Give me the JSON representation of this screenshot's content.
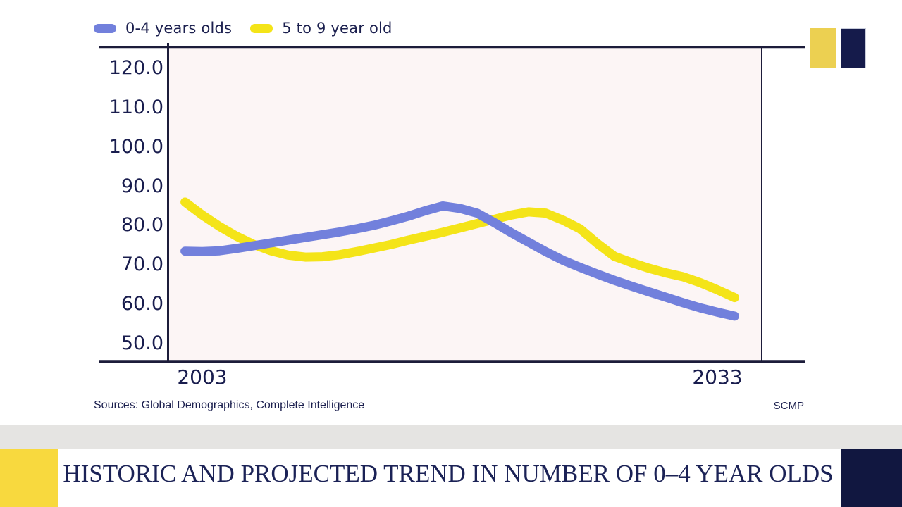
{
  "legend": {
    "items": [
      {
        "label": "0-4 years olds",
        "color": "#7280dc"
      },
      {
        "label": "5 to 9 year old",
        "color": "#f4e418"
      }
    ]
  },
  "chart_data": {
    "type": "line",
    "title": "",
    "xlabel": "",
    "ylabel": "",
    "x": [
      2002,
      2003,
      2004,
      2005,
      2006,
      2007,
      2008,
      2009,
      2010,
      2011,
      2012,
      2013,
      2014,
      2015,
      2016,
      2017,
      2018,
      2019,
      2020,
      2021,
      2022,
      2023,
      2024,
      2025,
      2026,
      2027,
      2028,
      2029,
      2030,
      2031,
      2032,
      2033,
      2034
    ],
    "series": [
      {
        "name": "0-4 years olds",
        "color": "#7280dc",
        "values": [
          73.5,
          73.4,
          73.6,
          74.2,
          74.9,
          75.6,
          76.3,
          77.0,
          77.7,
          78.4,
          79.2,
          80.1,
          81.2,
          82.4,
          83.8,
          85.0,
          84.4,
          83.2,
          80.8,
          78.2,
          75.8,
          73.4,
          71.2,
          69.4,
          67.7,
          66.1,
          64.6,
          63.2,
          61.8,
          60.4,
          59.1,
          58.0,
          57.0
        ]
      },
      {
        "name": "5 to 9 year old",
        "color": "#f4e418",
        "values": [
          86.0,
          82.7,
          79.8,
          77.3,
          75.2,
          73.6,
          72.5,
          72.0,
          72.1,
          72.6,
          73.4,
          74.3,
          75.2,
          76.3,
          77.3,
          78.3,
          79.4,
          80.5,
          81.6,
          82.7,
          83.5,
          83.2,
          81.4,
          79.2,
          75.5,
          72.2,
          70.6,
          69.2,
          68.0,
          67.0,
          65.5,
          63.7,
          61.7
        ]
      }
    ],
    "yticks": [
      {
        "label": "120.0",
        "value": 120
      },
      {
        "label": "110.0",
        "value": 110
      },
      {
        "label": "100.0",
        "value": 100
      },
      {
        "label": "90.0",
        "value": 90
      },
      {
        "label": "80.0",
        "value": 80
      },
      {
        "label": "70.0",
        "value": 70
      },
      {
        "label": "60.0",
        "value": 60
      },
      {
        "label": "50.0",
        "value": 50
      }
    ],
    "xticks": [
      {
        "label": "2003",
        "year": 2003
      },
      {
        "label": "2033",
        "year": 2033
      }
    ],
    "ylim": [
      45,
      125
    ],
    "grid": false,
    "legend_position": "top-left",
    "plot_background": "#fcf5f5",
    "axis_color": "#1c1c3a"
  },
  "sources": {
    "text": "Sources: Global Demographics, Complete Intelligence",
    "brand": "SCMP"
  },
  "footer": {
    "title": "HISTORIC AND PROJECTED TREND IN NUMBER OF 0–4 YEAR OLDS"
  },
  "decor": {
    "swatch_yellow": "#ecd051",
    "swatch_navy": "#151b4b",
    "footer_yellow": "#f8d93e",
    "footer_navy": "#111740",
    "band_gray": "#e5e4e2"
  }
}
